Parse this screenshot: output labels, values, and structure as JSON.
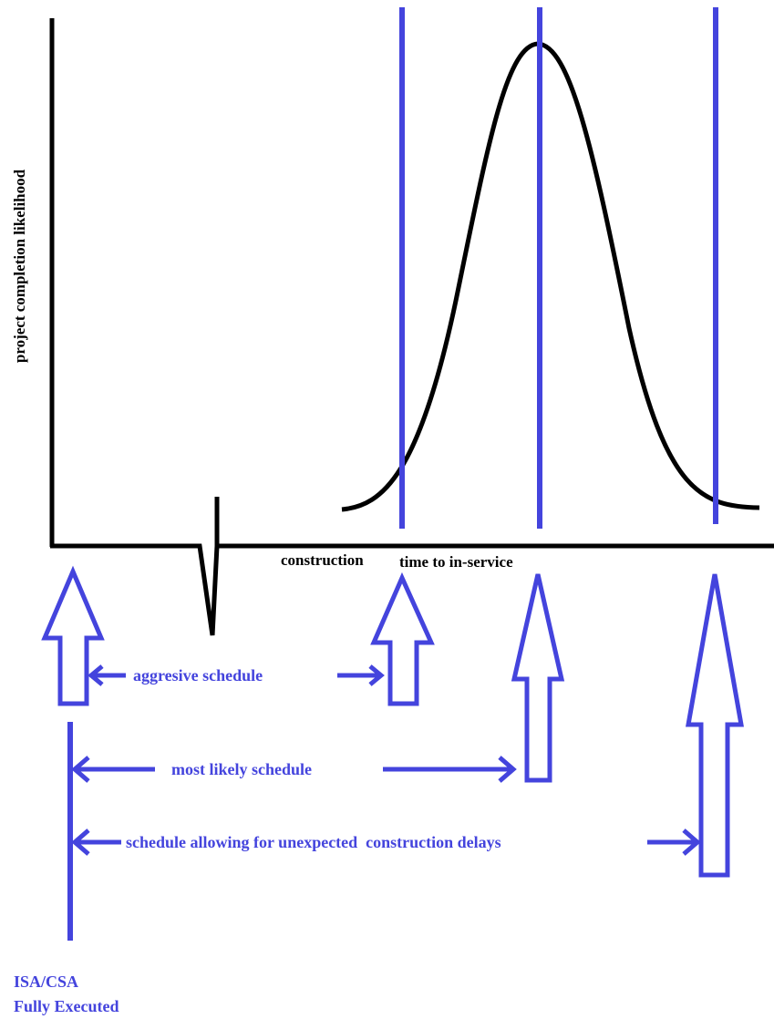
{
  "diagram": {
    "y_axis_label": "project completion likelihood",
    "x_axis_label_part1": "construction",
    "x_axis_label_part2": "time to in-service",
    "arrow_labels": {
      "aggressive": "aggresive schedule",
      "most_likely": "most likely schedule",
      "delays": "schedule allowing for unexpected  construction delays"
    },
    "milestone_line1": "ISA/CSA",
    "milestone_line2": "Fully Executed",
    "colors": {
      "axis": "#000000",
      "curve": "#000000",
      "annotation": "#4444dd"
    }
  }
}
